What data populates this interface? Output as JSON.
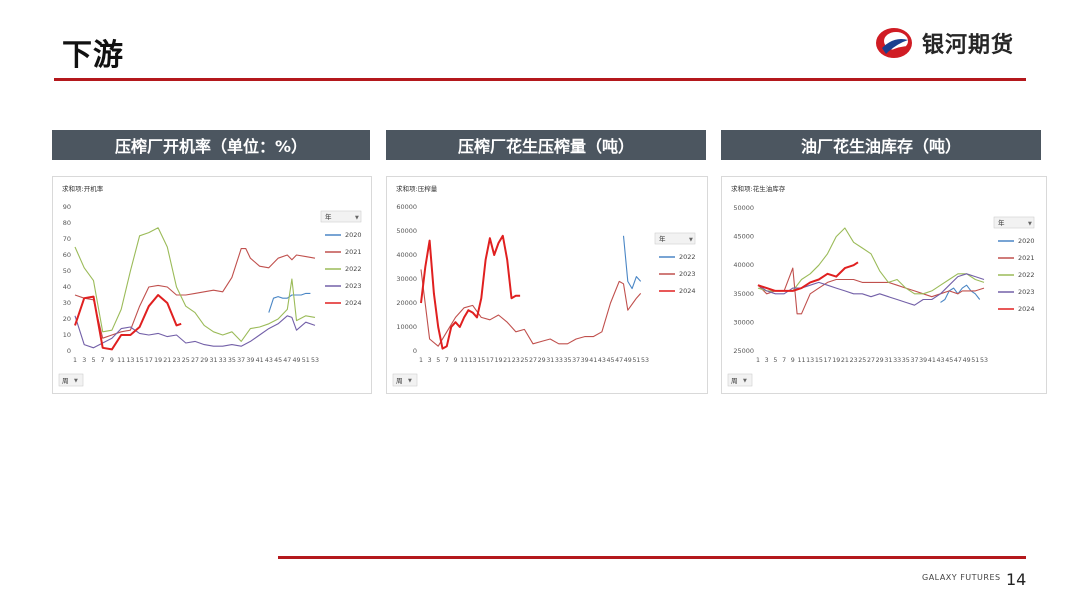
{
  "header": {
    "title": "下游",
    "logo_text": "银河期货"
  },
  "colors": {
    "accent": "#b4181c",
    "banner": "#4c5660"
  },
  "banners": [
    "压榨厂开机率（单位：%）",
    "压榨厂花生压榨量（吨）",
    "油厂花生油库存（吨）"
  ],
  "footer": {
    "brand": "GALAXY FUTURES",
    "page": "14"
  },
  "chart_data": [
    {
      "type": "line",
      "title": "求和项:开机率",
      "filter_label": "周",
      "legend_title": "年",
      "ylim": [
        0,
        90
      ],
      "yticks": [
        0,
        10,
        20,
        30,
        40,
        50,
        60,
        70,
        80,
        90
      ],
      "xticks": [
        "1",
        "3",
        "5",
        "7",
        "9",
        "11",
        "13",
        "15",
        "17",
        "19",
        "21",
        "23",
        "25",
        "27",
        "29",
        "31",
        "33",
        "35",
        "37",
        "39",
        "41",
        "43",
        "45",
        "47",
        "49",
        "51",
        "53"
      ],
      "legend_position": "right",
      "series": [
        {
          "name": "2020",
          "color": "#4a86c5",
          "width": 1.1,
          "x": [
            43,
            44,
            45,
            46,
            47,
            48,
            49,
            50,
            51,
            52
          ],
          "y": [
            24,
            33,
            34,
            33,
            33,
            35,
            35,
            35,
            36,
            36
          ]
        },
        {
          "name": "2021",
          "color": "#c0504d",
          "width": 1.1,
          "x": [
            1,
            3,
            5,
            7,
            9,
            11,
            13,
            15,
            17,
            19,
            21,
            23,
            25,
            27,
            29,
            31,
            33,
            35,
            37,
            38,
            39,
            41,
            43,
            45,
            47,
            48,
            49,
            51,
            53
          ],
          "y": [
            35,
            33,
            32,
            8,
            10,
            12,
            13,
            28,
            40,
            41,
            40,
            35,
            35,
            36,
            37,
            38,
            37,
            46,
            64,
            64,
            58,
            53,
            52,
            58,
            60,
            57,
            60,
            59,
            58
          ]
        },
        {
          "name": "2022",
          "color": "#9bbb59",
          "width": 1.1,
          "x": [
            1,
            3,
            5,
            7,
            9,
            11,
            13,
            15,
            17,
            19,
            21,
            23,
            25,
            27,
            29,
            31,
            33,
            35,
            37,
            39,
            41,
            43,
            45,
            47,
            48,
            49,
            51,
            53
          ],
          "y": [
            65,
            52,
            44,
            12,
            13,
            26,
            50,
            72,
            74,
            77,
            65,
            40,
            28,
            24,
            16,
            12,
            10,
            12,
            6,
            14,
            15,
            17,
            20,
            26,
            45,
            19,
            22,
            21
          ]
        },
        {
          "name": "2023",
          "color": "#7360a8",
          "width": 1.1,
          "x": [
            1,
            3,
            5,
            7,
            9,
            11,
            13,
            15,
            17,
            19,
            21,
            23,
            25,
            27,
            29,
            31,
            33,
            35,
            37,
            39,
            41,
            43,
            45,
            47,
            48,
            49,
            51,
            53
          ],
          "y": [
            22,
            4,
            2,
            5,
            8,
            14,
            15,
            11,
            10,
            11,
            9,
            10,
            5,
            6,
            4,
            3,
            3,
            4,
            3,
            6,
            10,
            14,
            17,
            22,
            21,
            13,
            18,
            16
          ]
        },
        {
          "name": "2024",
          "color": "#e02020",
          "width": 2,
          "x": [
            1,
            3,
            5,
            7,
            9,
            11,
            13,
            15,
            17,
            19,
            21,
            23,
            24
          ],
          "y": [
            16,
            33,
            34,
            2,
            1,
            10,
            10,
            15,
            28,
            35,
            30,
            16,
            17
          ]
        }
      ]
    },
    {
      "type": "line",
      "title": "求和项:压榨量",
      "filter_label": "周",
      "legend_title": "年",
      "ylim": [
        0,
        60000
      ],
      "yticks": [
        0,
        10000,
        20000,
        30000,
        40000,
        50000,
        60000
      ],
      "xticks": [
        "1",
        "3",
        "5",
        "7",
        "9",
        "11",
        "13",
        "15",
        "17",
        "19",
        "21",
        "23",
        "25",
        "27",
        "29",
        "31",
        "33",
        "35",
        "37",
        "39",
        "41",
        "43",
        "45",
        "47",
        "49",
        "51",
        "53"
      ],
      "legend_position": "right",
      "series": [
        {
          "name": "2022",
          "color": "#4a86c5",
          "width": 1.1,
          "x": [
            48,
            49,
            50,
            51,
            52
          ],
          "y": [
            48000,
            29000,
            26000,
            31000,
            29000
          ]
        },
        {
          "name": "2023",
          "color": "#c0504d",
          "width": 1.1,
          "x": [
            1,
            3,
            5,
            7,
            9,
            11,
            13,
            15,
            17,
            19,
            21,
            23,
            25,
            27,
            29,
            31,
            33,
            35,
            37,
            39,
            41,
            43,
            45,
            47,
            48,
            49,
            51,
            52
          ],
          "y": [
            34000,
            5000,
            2000,
            8000,
            14000,
            18000,
            19000,
            14000,
            13000,
            15000,
            12000,
            8000,
            9000,
            3000,
            4000,
            5000,
            3000,
            3000,
            5000,
            6000,
            6000,
            8000,
            20000,
            29000,
            28000,
            17000,
            22000,
            24000
          ]
        },
        {
          "name": "2024",
          "color": "#e02020",
          "width": 2,
          "x": [
            1,
            2,
            3,
            4,
            5,
            6,
            7,
            8,
            9,
            10,
            11,
            12,
            13,
            14,
            15,
            16,
            17,
            18,
            19,
            20,
            21,
            22,
            23,
            24
          ],
          "y": [
            20000,
            35000,
            46000,
            24000,
            10000,
            1000,
            2000,
            10000,
            12000,
            10000,
            14000,
            17000,
            16000,
            14000,
            22000,
            38000,
            47000,
            40000,
            45000,
            48000,
            38000,
            22000,
            23000,
            23000
          ]
        }
      ]
    },
    {
      "type": "line",
      "title": "求和项:花生油库存",
      "filter_label": "周",
      "legend_title": "年",
      "ylim": [
        25000,
        50000
      ],
      "yticks": [
        25000,
        30000,
        35000,
        40000,
        45000,
        50000
      ],
      "xticks": [
        "1",
        "3",
        "5",
        "7",
        "9",
        "11",
        "13",
        "15",
        "17",
        "19",
        "21",
        "23",
        "25",
        "27",
        "29",
        "31",
        "33",
        "35",
        "37",
        "39",
        "41",
        "43",
        "45",
        "47",
        "49",
        "51",
        "53"
      ],
      "legend_position": "right",
      "series": [
        {
          "name": "2020",
          "color": "#4a86c5",
          "width": 1.1,
          "x": [
            43,
            44,
            45,
            46,
            47,
            48,
            49,
            50,
            51,
            52
          ],
          "y": [
            33500,
            34000,
            35500,
            36000,
            35000,
            36000,
            36500,
            35500,
            35000,
            34000
          ]
        },
        {
          "name": "2021",
          "color": "#c0504d",
          "width": 1.1,
          "x": [
            1,
            3,
            5,
            7,
            9,
            10,
            11,
            13,
            15,
            17,
            19,
            21,
            23,
            25,
            27,
            29,
            31,
            33,
            35,
            37,
            39,
            41,
            43,
            45,
            47,
            48,
            49,
            51,
            53
          ],
          "y": [
            36500,
            35000,
            35500,
            35500,
            39500,
            31500,
            31500,
            35000,
            36000,
            37000,
            37500,
            37500,
            37500,
            37000,
            37000,
            37000,
            37000,
            36500,
            36000,
            35500,
            35000,
            34500,
            35000,
            35500,
            35000,
            35500,
            35500,
            35500,
            36000
          ]
        },
        {
          "name": "2022",
          "color": "#9bbb59",
          "width": 1.1,
          "x": [
            1,
            3,
            5,
            7,
            9,
            11,
            13,
            15,
            17,
            19,
            21,
            23,
            25,
            27,
            29,
            31,
            33,
            35,
            37,
            39,
            41,
            43,
            45,
            47,
            49,
            51,
            53
          ],
          "y": [
            36000,
            35500,
            35500,
            35500,
            35500,
            37500,
            38500,
            40000,
            42000,
            45000,
            46500,
            44000,
            43000,
            42000,
            39000,
            37000,
            37500,
            36000,
            35000,
            35000,
            35500,
            36500,
            37500,
            38500,
            38500,
            37500,
            37000
          ]
        },
        {
          "name": "2023",
          "color": "#7360a8",
          "width": 1.1,
          "x": [
            1,
            3,
            5,
            7,
            9,
            11,
            13,
            15,
            17,
            19,
            21,
            23,
            25,
            27,
            29,
            31,
            33,
            35,
            37,
            39,
            41,
            43,
            45,
            47,
            49,
            51,
            53
          ],
          "y": [
            36500,
            35500,
            35000,
            35000,
            36000,
            36000,
            36500,
            37000,
            36500,
            36000,
            35500,
            35000,
            35000,
            34500,
            35000,
            34500,
            34000,
            33500,
            33000,
            34000,
            34000,
            35000,
            36500,
            38000,
            38500,
            38000,
            37500
          ]
        },
        {
          "name": "2024",
          "color": "#e02020",
          "width": 2,
          "x": [
            1,
            3,
            5,
            7,
            9,
            11,
            13,
            15,
            17,
            19,
            21,
            23,
            24
          ],
          "y": [
            36500,
            36000,
            35500,
            35500,
            35500,
            36000,
            37000,
            37500,
            38500,
            38000,
            39500,
            40000,
            40500
          ]
        }
      ]
    }
  ]
}
